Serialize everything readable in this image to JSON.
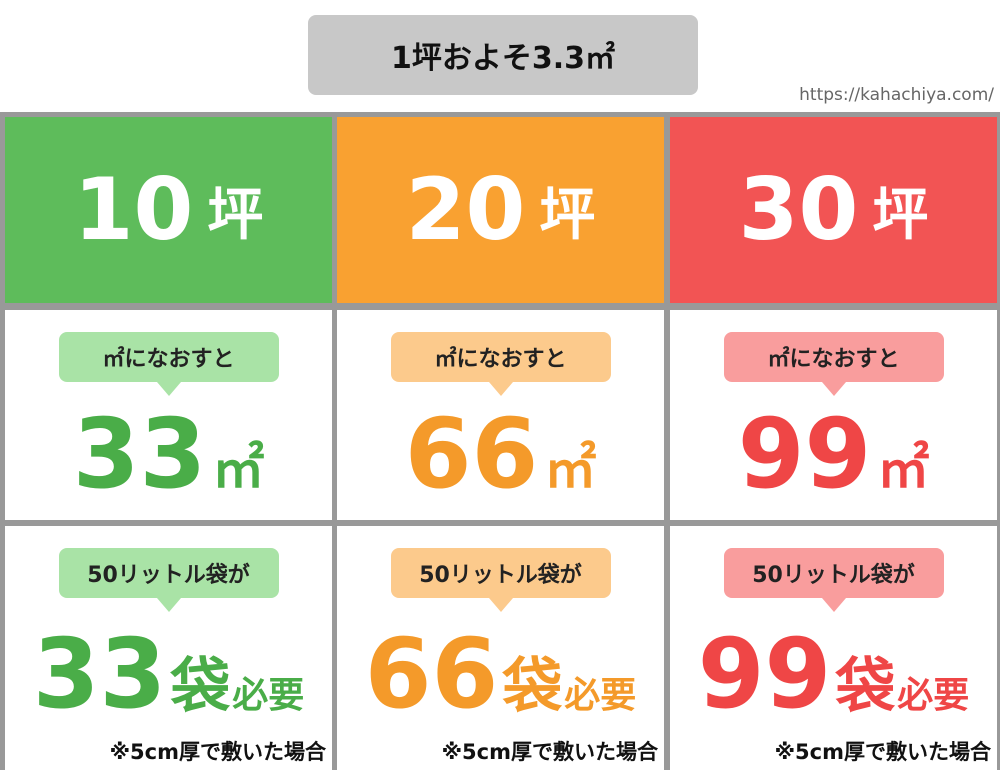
{
  "header": {
    "title": "1坪およそ3.3㎡",
    "url": "https://kahachiya.com/"
  },
  "columns": [
    {
      "tsubo": 10,
      "tsubo_unit": "坪",
      "area_label": "㎡になおすと",
      "area": 33,
      "area_unit": "㎡",
      "bag_label": "50リットル袋が",
      "bags": 33,
      "bags_unit": "袋",
      "need": "必要",
      "note": "※5cm厚で敷いた場合"
    },
    {
      "tsubo": 20,
      "tsubo_unit": "坪",
      "area_label": "㎡になおすと",
      "area": 66,
      "area_unit": "㎡",
      "bag_label": "50リットル袋が",
      "bags": 66,
      "bags_unit": "袋",
      "need": "必要",
      "note": "※5cm厚で敷いた場合"
    },
    {
      "tsubo": 30,
      "tsubo_unit": "坪",
      "area_label": "㎡になおすと",
      "area": 99,
      "area_unit": "㎡",
      "bag_label": "50リットル袋が",
      "bags": 99,
      "bags_unit": "袋",
      "need": "必要",
      "note": "※5cm厚で敷いた場合"
    }
  ]
}
